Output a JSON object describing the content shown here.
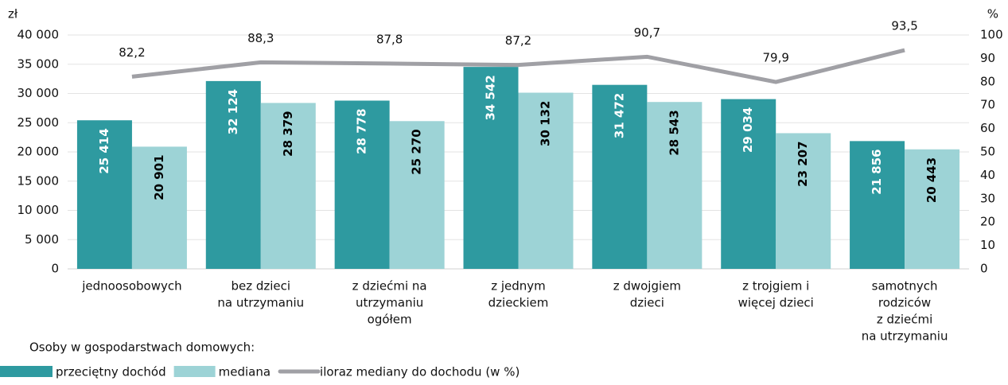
{
  "chart_data": {
    "type": "bar",
    "y_label": "zł",
    "y2_label": "%",
    "categories": [
      [
        "jednoosobowych"
      ],
      [
        "bez dzieci",
        "na utrzymaniu"
      ],
      [
        "z dziećmi na",
        "utrzymaniu",
        "ogółem"
      ],
      [
        "z jednym",
        "dzieckiem"
      ],
      [
        "z dwojgiem",
        "dzieci"
      ],
      [
        "z trojgiem i",
        "więcej dzieci"
      ],
      [
        "samotnych",
        "rodziców",
        "z dziećmi",
        "na utrzymaniu"
      ]
    ],
    "legend_title": "Osoby w gospodarstwach domowych:",
    "series": [
      {
        "name": "przeciętny dochód",
        "color": "#2e9aa0",
        "values": [
          25414,
          32124,
          28778,
          34542,
          31472,
          29034,
          21856
        ],
        "value_labels": [
          "25 414",
          "32 124",
          "28 778",
          "34 542",
          "31 472",
          "29 034",
          "21 856"
        ]
      },
      {
        "name": "mediana",
        "color": "#9dd3d6",
        "values": [
          20901,
          28379,
          25270,
          30132,
          28543,
          23207,
          20443
        ],
        "value_labels": [
          "20 901",
          "28 379",
          "25 270",
          "30 132",
          "28 543",
          "23 207",
          "20 443"
        ]
      },
      {
        "name": "iloraz mediany do dochodu (w %)",
        "color": "#a0a0a5",
        "type": "line",
        "axis": "y2",
        "values": [
          82.2,
          88.3,
          87.8,
          87.2,
          90.7,
          79.9,
          93.5
        ],
        "value_labels": [
          "82,2",
          "88,3",
          "87,8",
          "87,2",
          "90,7",
          "79,9",
          "93,5"
        ]
      }
    ],
    "ylim": [
      0,
      40000
    ],
    "yticks": [
      {
        "value": 0,
        "label": "0"
      },
      {
        "value": 5000,
        "label": "5 000"
      },
      {
        "value": 10000,
        "label": "10 000"
      },
      {
        "value": 15000,
        "label": "15 000"
      },
      {
        "value": 20000,
        "label": "20 000"
      },
      {
        "value": 25000,
        "label": "25 000"
      },
      {
        "value": 30000,
        "label": "30 000"
      },
      {
        "value": 35000,
        "label": "35 000"
      },
      {
        "value": 40000,
        "label": "40 000"
      }
    ],
    "y2lim": [
      0,
      100
    ],
    "y2ticks": [
      0,
      10,
      20,
      30,
      40,
      50,
      60,
      70,
      80,
      90,
      100
    ],
    "grid": true
  }
}
